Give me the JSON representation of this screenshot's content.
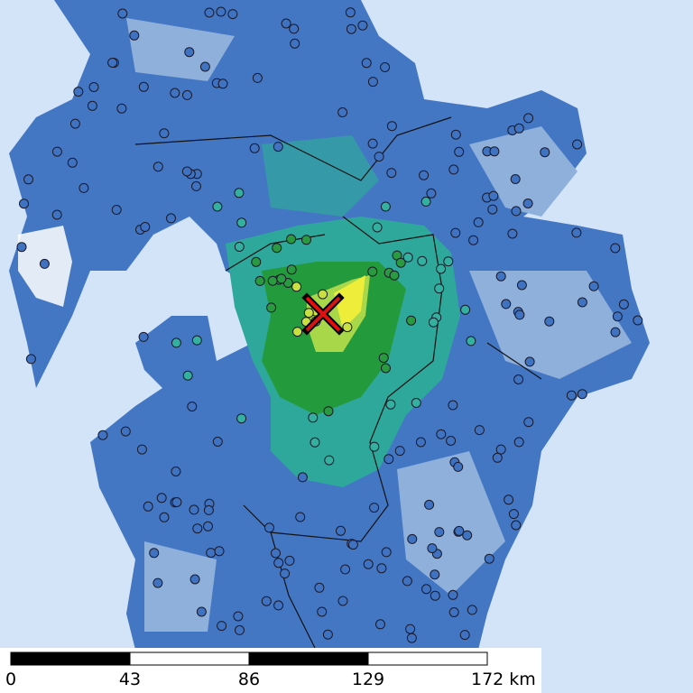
{
  "scale_bar": {
    "labels": [
      "0",
      "43",
      "86",
      "129",
      "172 km"
    ]
  }
}
